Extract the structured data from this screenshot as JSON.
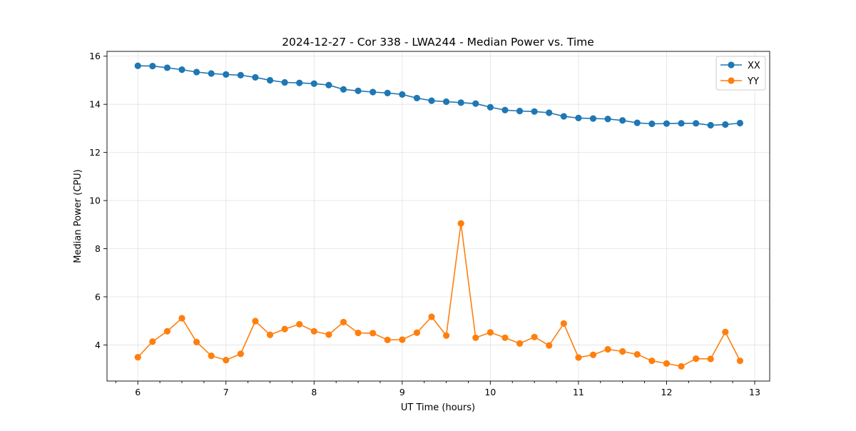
{
  "chart_data": {
    "type": "line",
    "title": "2024-12-27 - Cor 338 - LWA244 - Median Power vs. Time",
    "xlabel": "UT Time (hours)",
    "ylabel": "Median Power (CPU)",
    "xlim": [
      5.65,
      13.17
    ],
    "ylim": [
      2.5,
      16.2
    ],
    "x_ticks": [
      6,
      7,
      8,
      9,
      10,
      11,
      12,
      13
    ],
    "x_minor_ticks": [
      5.75,
      6.25,
      6.5,
      6.75,
      7.25,
      7.5,
      7.75,
      8.25,
      8.5,
      8.75,
      9.25,
      9.5,
      9.75,
      10.25,
      10.5,
      10.75,
      11.25,
      11.5,
      11.75,
      12.25,
      12.5,
      12.75
    ],
    "y_ticks": [
      4,
      6,
      8,
      10,
      12,
      14,
      16
    ],
    "grid": true,
    "legend_position": "upper right",
    "x": [
      6.0,
      6.1667,
      6.3333,
      6.5,
      6.6667,
      6.8333,
      7.0,
      7.1667,
      7.3333,
      7.5,
      7.6667,
      7.8333,
      8.0,
      8.1667,
      8.3333,
      8.5,
      8.6667,
      8.8333,
      9.0,
      9.1667,
      9.3333,
      9.5,
      9.6667,
      9.8333,
      10.0,
      10.1667,
      10.3333,
      10.5,
      10.6667,
      10.8333,
      11.0,
      11.1667,
      11.3333,
      11.5,
      11.6667,
      11.8333,
      12.0,
      12.1667,
      12.3333,
      12.5,
      12.6667,
      12.8333
    ],
    "series": [
      {
        "name": "XX",
        "color": "#1f77b4",
        "values": [
          15.6,
          15.59,
          15.52,
          15.44,
          15.34,
          15.28,
          15.24,
          15.21,
          15.12,
          15.0,
          14.91,
          14.89,
          14.86,
          14.8,
          14.62,
          14.56,
          14.51,
          14.47,
          14.41,
          14.26,
          14.15,
          14.11,
          14.07,
          14.03,
          13.88,
          13.76,
          13.72,
          13.7,
          13.65,
          13.5,
          13.43,
          13.41,
          13.39,
          13.33,
          13.23,
          13.19,
          13.2,
          13.21,
          13.21,
          13.13,
          13.16,
          13.22
        ]
      },
      {
        "name": "YY",
        "color": "#ff7f0e",
        "values": [
          3.49,
          4.14,
          4.57,
          5.11,
          4.12,
          3.55,
          3.37,
          3.63,
          4.99,
          4.42,
          4.66,
          4.86,
          4.57,
          4.43,
          4.95,
          4.5,
          4.49,
          4.21,
          4.22,
          4.51,
          5.17,
          4.39,
          9.05,
          4.3,
          4.52,
          4.3,
          4.06,
          4.33,
          3.98,
          4.89,
          3.48,
          3.59,
          3.82,
          3.73,
          3.61,
          3.34,
          3.23,
          3.11,
          3.43,
          3.42,
          4.54,
          3.34
        ]
      }
    ]
  }
}
